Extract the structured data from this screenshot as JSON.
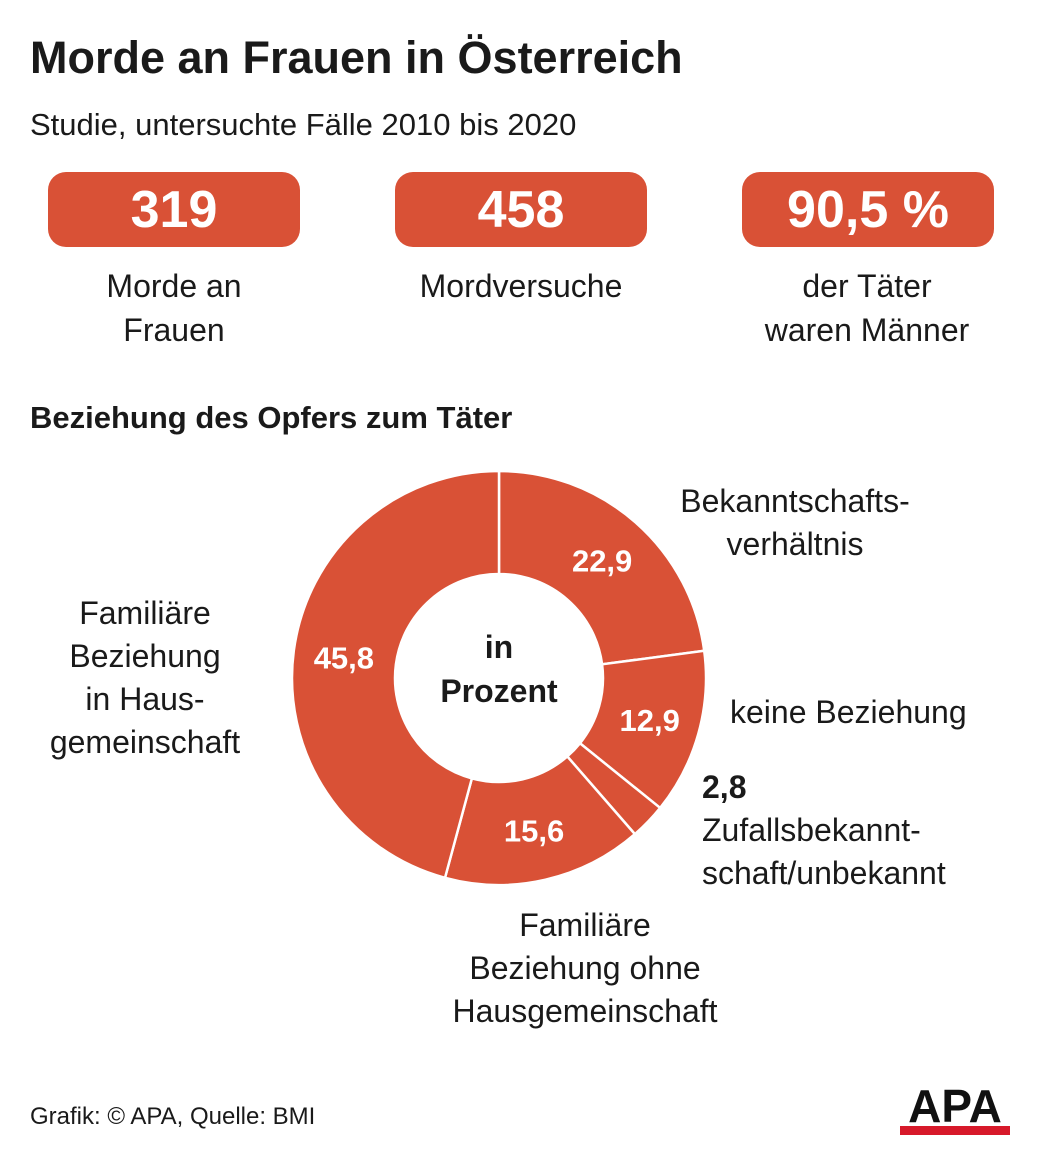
{
  "title": "Morde an Frauen in Österreich",
  "subtitle": "Studie, untersuchte Fälle 2010 bis 2020",
  "stats": [
    {
      "value": "319",
      "label_line1": "Morde an",
      "label_line2": "Frauen"
    },
    {
      "value": "458",
      "label_line1": "Mordversuche",
      "label_line2": ""
    },
    {
      "value": "90,5 %",
      "label_line1": "der Täter",
      "label_line2": "waren Männer"
    }
  ],
  "section_title": "Beziehung des Opfers zum Täter",
  "center_label": {
    "line1": "in",
    "line2": "Prozent"
  },
  "colors": {
    "accent": "#d95136",
    "text": "#1a1a1a",
    "logo_red": "#d7192a"
  },
  "chart_data": {
    "type": "pie",
    "title": "Beziehung des Opfers zum Täter",
    "unit": "in Prozent",
    "categories": [
      "Bekanntschaftsverhältnis",
      "keine Beziehung",
      "Zufallsbekanntschaft/unbekannt",
      "Familiäre Beziehung ohne Hausgemeinschaft",
      "Familiäre Beziehung in Hausgemeinschaft"
    ],
    "values": [
      22.9,
      12.9,
      2.8,
      15.6,
      45.8
    ],
    "value_labels": [
      "22,9",
      "12,9",
      "2,8",
      "15,6",
      "45,8"
    ]
  },
  "annotations": {
    "bekannt": [
      "Bekanntschafts-",
      "verhältnis"
    ],
    "keine": [
      "keine Beziehung"
    ],
    "zufall_value": "2,8",
    "zufall": [
      "Zufallsbekannt-",
      "schaft/unbekannt"
    ],
    "ohne": [
      "Familiäre",
      "Beziehung ohne",
      "Hausgemeinschaft"
    ],
    "in_haus": [
      "Familiäre",
      "Beziehung",
      "in Haus-",
      "gemeinschaft"
    ]
  },
  "footer": "Grafik: © APA, Quelle: BMI",
  "logo_text": "APA"
}
